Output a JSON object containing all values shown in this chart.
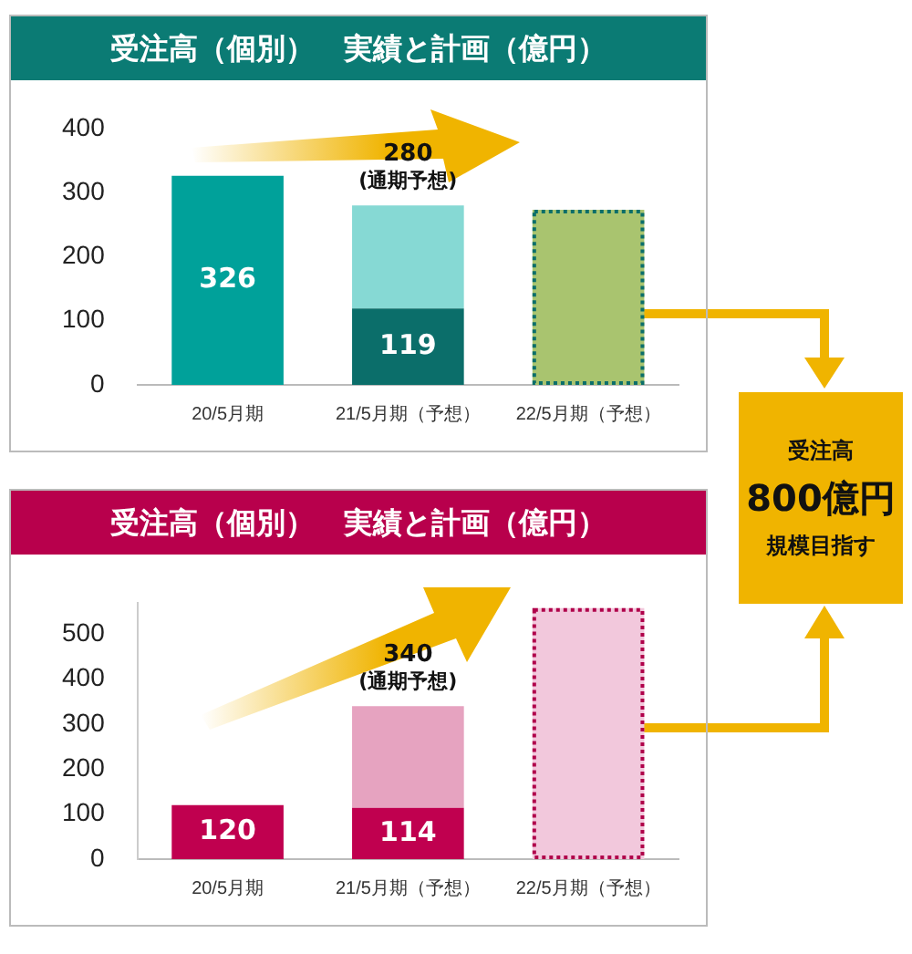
{
  "chart_data": [
    {
      "type": "bar",
      "title": "受注高（個別）　実績と計画（億円）",
      "categories": [
        "20/5月期",
        "21/5月期（予想）",
        "22/5月期（予想）"
      ],
      "stacked": true,
      "ylim": [
        0,
        400
      ],
      "yticks": [
        0,
        100,
        200,
        300,
        400
      ],
      "grid": false,
      "legend": false,
      "series": [
        {
          "colors": [
            "#00a19a",
            "#0b6e6a",
            null
          ],
          "color": "#0b6e6a",
          "values": [
            326,
            119,
            null
          ],
          "value_labels": [
            "326",
            "119",
            null
          ]
        },
        {
          "color": "#86d9d4",
          "values": [
            null,
            161,
            null
          ]
        },
        {
          "color": "#a9c46f",
          "values": [
            null,
            null,
            273
          ],
          "line_style": "dotted"
        }
      ],
      "totals": [
        null,
        "280",
        null
      ],
      "annotations": [
        {
          "text": "(通期予想)",
          "x": "21/5月期（予想）",
          "y": 280
        }
      ]
    },
    {
      "type": "bar",
      "title": "受注高（個別）　実績と計画（億円）",
      "categories": [
        "20/5月期",
        "21/5月期（予想）",
        "22/5月期（予想）"
      ],
      "stacked": true,
      "ylim": [
        0,
        570
      ],
      "yticks": [
        0,
        100,
        200,
        300,
        400,
        500
      ],
      "grid": false,
      "legend": false,
      "series": [
        {
          "color": "#c0004f",
          "values": [
            120,
            114,
            null
          ],
          "value_labels": [
            "120",
            "114",
            null
          ]
        },
        {
          "color": "#e6a3c0",
          "values": [
            null,
            226,
            null
          ]
        },
        {
          "color": "#f2c8dc",
          "values": [
            null,
            null,
            558
          ],
          "line_style": "dotted"
        }
      ],
      "totals": [
        null,
        "340",
        null
      ],
      "annotations": [
        {
          "text": "(通期予想)",
          "x": "21/5月期（予想）",
          "y": 340
        }
      ]
    },
    {
      "type": "other",
      "title": "受注高",
      "annotations": [
        "800億円",
        "規模目指す"
      ]
    }
  ]
}
